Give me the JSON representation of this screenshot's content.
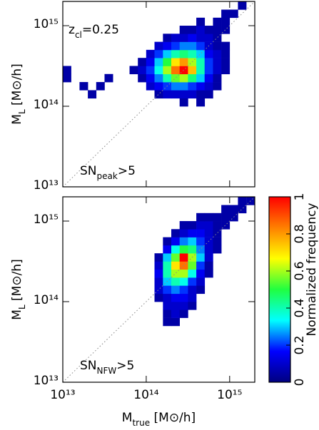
{
  "chart_data": [
    {
      "type": "heatmap",
      "annotation": {
        "main": "z",
        "sub": "cl",
        "rest": "=0.25"
      },
      "ylabel": {
        "main": "M",
        "sub": "L",
        "rest": " [M⊙/h]"
      },
      "log_scale": true,
      "xlim": [
        10000000000000.0,
        2000000000000000.0
      ],
      "ylim": [
        10000000000000.0,
        2000000000000000.0
      ],
      "xticks": [
        10000000000000.0,
        100000000000000.0,
        1000000000000000.0
      ],
      "yticks": [
        {
          "value": 10000000000000.0,
          "label": "10¹³"
        },
        {
          "value": 100000000000000.0,
          "label": "10¹⁴"
        },
        {
          "value": 1000000000000000.0,
          "label": "10¹⁵"
        }
      ],
      "x": [
        11200000000000.0,
        14100000000000.0,
        17800000000000.0,
        22400000000000.0,
        28200000000000.0,
        35500000000000.0,
        44700000000000.0,
        56200000000000.0,
        70800000000000.0,
        89100000000000.0,
        112000000000000.0,
        141000000000000.0,
        178000000000000.0,
        224000000000000.0,
        282000000000000.0,
        355000000000000.0,
        447000000000000.0,
        562000000000000.0,
        708000000000000.0,
        891000000000000.0,
        1120000000000000.0,
        1410000000000000.0,
        1780000000000000.0
      ],
      "y": [
        89100000000000.0,
        112000000000000.0,
        141000000000000.0,
        178000000000000.0,
        224000000000000.0,
        282000000000000.0,
        355000000000000.0,
        447000000000000.0,
        562000000000000.0,
        708000000000000.0,
        891000000000000.0,
        1120000000000000.0,
        1410000000000000.0,
        1780000000000000.0
      ],
      "z": [
        [
          null,
          null,
          null,
          null,
          null,
          null,
          null,
          null,
          null,
          null,
          null,
          null,
          null,
          null,
          null,
          null,
          null,
          null,
          null,
          null,
          null,
          null,
          null
        ],
        [
          null,
          null,
          null,
          null,
          null,
          null,
          null,
          null,
          null,
          null,
          null,
          null,
          null,
          null,
          0.05,
          null,
          0.05,
          null,
          null,
          null,
          null,
          null,
          null
        ],
        [
          null,
          null,
          null,
          0.05,
          null,
          null,
          null,
          null,
          null,
          null,
          null,
          0.05,
          0.1,
          0.1,
          0.1,
          0.1,
          0.05,
          0.05,
          null,
          null,
          null,
          null,
          null
        ],
        [
          null,
          null,
          0.05,
          null,
          0.05,
          null,
          null,
          null,
          null,
          null,
          0.1,
          0.15,
          0.2,
          0.25,
          0.25,
          0.2,
          0.15,
          0.1,
          0.05,
          null,
          null,
          null,
          null
        ],
        [
          0.05,
          null,
          null,
          null,
          null,
          0.05,
          null,
          null,
          null,
          0.05,
          0.15,
          0.25,
          0.4,
          0.55,
          0.6,
          0.45,
          0.3,
          0.15,
          0.05,
          null,
          null,
          null,
          null
        ],
        [
          0.05,
          null,
          null,
          null,
          null,
          null,
          null,
          null,
          0.05,
          0.1,
          0.2,
          0.35,
          0.6,
          0.85,
          1,
          0.75,
          0.4,
          0.2,
          0.1,
          0.05,
          null,
          null,
          null
        ],
        [
          null,
          null,
          null,
          null,
          null,
          null,
          null,
          null,
          null,
          0.05,
          0.15,
          0.3,
          0.5,
          0.7,
          0.8,
          0.6,
          0.4,
          0.2,
          0.1,
          0.05,
          null,
          null,
          null
        ],
        [
          null,
          null,
          null,
          null,
          null,
          null,
          null,
          null,
          null,
          null,
          0.1,
          0.2,
          0.3,
          0.4,
          0.45,
          0.4,
          0.3,
          0.15,
          0.1,
          0.05,
          null,
          null,
          null
        ],
        [
          null,
          null,
          null,
          null,
          null,
          null,
          null,
          null,
          null,
          null,
          null,
          0.1,
          0.15,
          0.2,
          0.25,
          0.25,
          0.2,
          0.1,
          0.05,
          0.05,
          null,
          null,
          null
        ],
        [
          null,
          null,
          null,
          null,
          null,
          null,
          null,
          null,
          null,
          null,
          null,
          null,
          0.05,
          0.1,
          0.1,
          0.15,
          0.1,
          0.1,
          0.05,
          null,
          null,
          null,
          null
        ],
        [
          null,
          null,
          null,
          null,
          null,
          null,
          null,
          null,
          null,
          null,
          null,
          null,
          null,
          null,
          0.05,
          0.05,
          0.1,
          0.05,
          0.05,
          0.05,
          null,
          null,
          null
        ],
        [
          null,
          null,
          null,
          null,
          null,
          null,
          null,
          null,
          null,
          null,
          null,
          null,
          null,
          null,
          null,
          null,
          0.05,
          null,
          0.05,
          0.05,
          null,
          null,
          null
        ],
        [
          null,
          null,
          null,
          null,
          null,
          null,
          null,
          null,
          null,
          null,
          null,
          null,
          null,
          null,
          null,
          null,
          null,
          null,
          null,
          0.05,
          0.05,
          null,
          null
        ],
        [
          null,
          null,
          null,
          null,
          null,
          null,
          null,
          null,
          null,
          null,
          null,
          null,
          null,
          null,
          null,
          null,
          null,
          null,
          null,
          null,
          null,
          0.05,
          null
        ]
      ],
      "note": {
        "main": "SN",
        "sub": "peak",
        "rest": ">5"
      }
    },
    {
      "type": "heatmap",
      "ylabel": {
        "main": "M",
        "sub": "L",
        "rest": " [M⊙/h]"
      },
      "xlabel": {
        "main": "M",
        "sub": "true",
        "rest": " [M⊙/h]"
      },
      "log_scale": true,
      "xlim": [
        10000000000000.0,
        2000000000000000.0
      ],
      "ylim": [
        10000000000000.0,
        2000000000000000.0
      ],
      "xticks": [
        {
          "value": 10000000000000.0,
          "label": "10¹³"
        },
        {
          "value": 100000000000000.0,
          "label": "10¹⁴"
        },
        {
          "value": 1000000000000000.0,
          "label": "10¹⁵"
        }
      ],
      "yticks": [
        {
          "value": 10000000000000.0,
          "label": "10¹³"
        },
        {
          "value": 100000000000000.0,
          "label": "10¹⁴"
        },
        {
          "value": 1000000000000000.0,
          "label": "10¹⁵"
        }
      ],
      "x": [
        11200000000000.0,
        14100000000000.0,
        17800000000000.0,
        22400000000000.0,
        28200000000000.0,
        35500000000000.0,
        44700000000000.0,
        56200000000000.0,
        70800000000000.0,
        89100000000000.0,
        112000000000000.0,
        141000000000000.0,
        178000000000000.0,
        224000000000000.0,
        282000000000000.0,
        355000000000000.0,
        447000000000000.0,
        562000000000000.0,
        708000000000000.0,
        891000000000000.0,
        1120000000000000.0,
        1410000000000000.0,
        1780000000000000.0
      ],
      "y": [
        56200000000000.0,
        70800000000000.0,
        89100000000000.0,
        112000000000000.0,
        141000000000000.0,
        178000000000000.0,
        224000000000000.0,
        282000000000000.0,
        355000000000000.0,
        447000000000000.0,
        562000000000000.0,
        708000000000000.0,
        891000000000000.0,
        1120000000000000.0,
        1410000000000000.0,
        1780000000000000.0
      ],
      "z": [
        [
          null,
          null,
          null,
          null,
          null,
          null,
          null,
          null,
          null,
          null,
          null,
          null,
          0.05,
          0.05,
          null,
          null,
          null,
          null,
          null,
          null,
          null,
          null,
          null
        ],
        [
          null,
          null,
          null,
          null,
          null,
          null,
          null,
          null,
          null,
          null,
          null,
          null,
          0.05,
          0.1,
          0.05,
          null,
          null,
          null,
          null,
          null,
          null,
          null,
          null
        ],
        [
          null,
          null,
          null,
          null,
          null,
          null,
          null,
          null,
          null,
          null,
          null,
          null,
          0.1,
          0.1,
          0.1,
          0.05,
          null,
          null,
          null,
          null,
          null,
          null,
          null
        ],
        [
          null,
          null,
          null,
          null,
          null,
          null,
          null,
          null,
          null,
          null,
          null,
          0.05,
          0.1,
          0.15,
          0.15,
          0.1,
          null,
          null,
          null,
          null,
          null,
          null,
          null
        ],
        [
          null,
          null,
          null,
          null,
          null,
          null,
          null,
          null,
          null,
          null,
          null,
          0.1,
          0.2,
          0.25,
          0.2,
          0.1,
          0.05,
          null,
          null,
          null,
          null,
          null,
          null
        ],
        [
          null,
          null,
          null,
          null,
          null,
          null,
          null,
          null,
          null,
          null,
          null,
          0.1,
          0.3,
          0.4,
          0.35,
          0.2,
          0.1,
          null,
          null,
          null,
          null,
          null,
          null
        ],
        [
          null,
          null,
          null,
          null,
          null,
          null,
          null,
          null,
          null,
          null,
          null,
          0.15,
          0.4,
          0.6,
          0.6,
          0.35,
          0.15,
          0.05,
          null,
          null,
          null,
          null,
          null
        ],
        [
          null,
          null,
          null,
          null,
          null,
          null,
          null,
          null,
          null,
          null,
          null,
          0.1,
          0.4,
          0.7,
          0.85,
          0.55,
          0.2,
          0.05,
          null,
          null,
          null,
          null,
          null
        ],
        [
          null,
          null,
          null,
          null,
          null,
          null,
          null,
          null,
          null,
          null,
          null,
          0.05,
          0.3,
          0.55,
          1,
          0.6,
          0.3,
          0.1,
          null,
          null,
          null,
          null,
          null
        ],
        [
          null,
          null,
          null,
          null,
          null,
          null,
          null,
          null,
          null,
          null,
          null,
          null,
          0.15,
          0.35,
          0.5,
          0.45,
          0.25,
          0.1,
          0.05,
          null,
          null,
          null,
          null
        ],
        [
          null,
          null,
          null,
          null,
          null,
          null,
          null,
          null,
          null,
          null,
          null,
          null,
          0.05,
          0.15,
          0.25,
          0.3,
          0.2,
          0.1,
          0.05,
          null,
          null,
          null,
          null
        ],
        [
          null,
          null,
          null,
          null,
          null,
          null,
          null,
          null,
          null,
          null,
          null,
          null,
          null,
          0.05,
          0.1,
          0.15,
          0.15,
          0.1,
          0.05,
          null,
          null,
          null,
          null
        ],
        [
          null,
          null,
          null,
          null,
          null,
          null,
          null,
          null,
          null,
          null,
          null,
          null,
          null,
          null,
          0.05,
          0.05,
          0.1,
          0.1,
          0.05,
          0.05,
          null,
          null,
          null
        ],
        [
          null,
          null,
          null,
          null,
          null,
          null,
          null,
          null,
          null,
          null,
          null,
          null,
          null,
          null,
          null,
          null,
          0.05,
          0.05,
          0.05,
          0.05,
          0.05,
          null,
          null
        ],
        [
          null,
          null,
          null,
          null,
          null,
          null,
          null,
          null,
          null,
          null,
          null,
          null,
          null,
          null,
          null,
          null,
          null,
          null,
          null,
          0.05,
          0.05,
          0.05,
          null
        ],
        [
          null,
          null,
          null,
          null,
          null,
          null,
          null,
          null,
          null,
          null,
          null,
          null,
          null,
          null,
          null,
          null,
          null,
          null,
          null,
          null,
          null,
          0.05,
          0.05
        ]
      ],
      "note": {
        "main": "SN",
        "sub": "NFW",
        "rest": ">5"
      }
    }
  ],
  "colorbar": {
    "label": "Normalized frequency",
    "lim": [
      0,
      1
    ],
    "ticks": [
      0,
      0.2,
      0.4,
      0.6,
      0.8,
      1
    ],
    "colors": [
      "#000080",
      "#0000ff",
      "#00ffff",
      "#20ff40",
      "#ffff00",
      "#ff8000",
      "#ff0000"
    ]
  }
}
